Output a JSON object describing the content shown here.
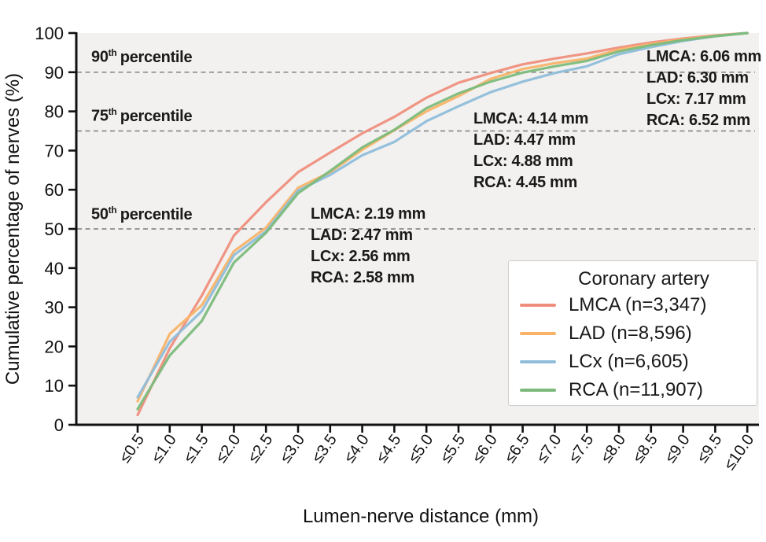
{
  "figure": {
    "plot_background": "#f2f1ef",
    "axis_color": "#111111",
    "dash_line_color": "#8c8c8c"
  },
  "percentile_labels": {
    "p90": {
      "value": "90",
      "sup": "th",
      "word": "percentile"
    },
    "p75": {
      "value": "75",
      "sup": "th",
      "word": "percentile"
    },
    "p50": {
      "value": "50",
      "sup": "th",
      "word": "percentile"
    }
  },
  "annotations": {
    "p50": {
      "lines": [
        "LMCA: 2.19 mm",
        "LAD: 2.47 mm",
        "LCx: 2.56 mm",
        "RCA: 2.58 mm"
      ]
    },
    "p75": {
      "lines": [
        "LMCA: 4.14 mm",
        "LAD: 4.47 mm",
        "LCx: 4.88 mm",
        "RCA: 4.45 mm"
      ]
    },
    "p90": {
      "lines": [
        "LMCA: 6.06 mm",
        "LAD: 6.30 mm",
        "LCx: 7.17 mm",
        "RCA: 6.52 mm"
      ]
    }
  },
  "legend": {
    "title": "Coronary artery",
    "entries": [
      {
        "label": "LMCA (n=3,347)",
        "color": "#ef8e7d"
      },
      {
        "label": "LAD (n=8,596)",
        "color": "#f8b369"
      },
      {
        "label": "LCx (n=6,605)",
        "color": "#8fbdda"
      },
      {
        "label": "RCA (n=11,907)",
        "color": "#7cba7b"
      }
    ]
  },
  "chart_data": {
    "type": "line",
    "xlabel": "Lumen-nerve distance (mm)",
    "ylabel": "Cumulative percentage of nerves (%)",
    "ylim": [
      0,
      100
    ],
    "y_ticks": [
      0,
      10,
      20,
      30,
      40,
      50,
      60,
      70,
      80,
      90,
      100
    ],
    "grid": "off",
    "legend_position": "lower right inside",
    "reference_lines_y": [
      90,
      75,
      50
    ],
    "categories": [
      "≤0.5",
      "≤1.0",
      "≤1.5",
      "≤2.0",
      "≤2.5",
      "≤3.0",
      "≤3.5",
      "≤4.0",
      "≤4.5",
      "≤5.0",
      "≤5.5",
      "≤6.0",
      "≤6.5",
      "≤7.0",
      "≤7.5",
      "≤8.0",
      "≤8.5",
      "≤9.0",
      "≤9.5",
      "≤10.0"
    ],
    "series": [
      {
        "name": "LMCA",
        "n": 3347,
        "color": "#ef8e7d",
        "values": [
          2.5,
          19.5,
          33,
          48.3,
          56.8,
          64.5,
          69.5,
          74.4,
          78.6,
          83.5,
          87.3,
          89.8,
          92,
          93.5,
          94.8,
          96.3,
          97.6,
          98.6,
          99.4,
          100
        ]
      },
      {
        "name": "LAD",
        "n": 8596,
        "color": "#f8b369",
        "values": [
          6,
          23.2,
          30.5,
          44.3,
          50.3,
          60.5,
          64.5,
          70.2,
          75.2,
          80,
          83.9,
          88.3,
          90.8,
          92.3,
          93.5,
          95.8,
          97.2,
          98.4,
          99.3,
          100
        ]
      },
      {
        "name": "LCx",
        "n": 6605,
        "color": "#8fbdda",
        "values": [
          7,
          21.2,
          29,
          43.3,
          49.4,
          59.8,
          63.8,
          68.8,
          72.2,
          77.5,
          81.3,
          84.9,
          87.6,
          89.8,
          91.5,
          94.6,
          96.4,
          98,
          99.2,
          100
        ]
      },
      {
        "name": "RCA",
        "n": 11907,
        "color": "#7cba7b",
        "values": [
          4,
          17.7,
          26.5,
          41.4,
          49,
          59.1,
          64.8,
          70.8,
          75.3,
          80.8,
          84.6,
          87.6,
          89.9,
          91.5,
          92.9,
          95.3,
          96.9,
          98.2,
          99.2,
          100
        ]
      }
    ],
    "percentiles_mm": {
      "50": {
        "LMCA": 2.19,
        "LAD": 2.47,
        "LCx": 2.56,
        "RCA": 2.58
      },
      "75": {
        "LMCA": 4.14,
        "LAD": 4.47,
        "LCx": 4.88,
        "RCA": 4.45
      },
      "90": {
        "LMCA": 6.06,
        "LAD": 6.3,
        "LCx": 7.17,
        "RCA": 6.52
      }
    }
  }
}
